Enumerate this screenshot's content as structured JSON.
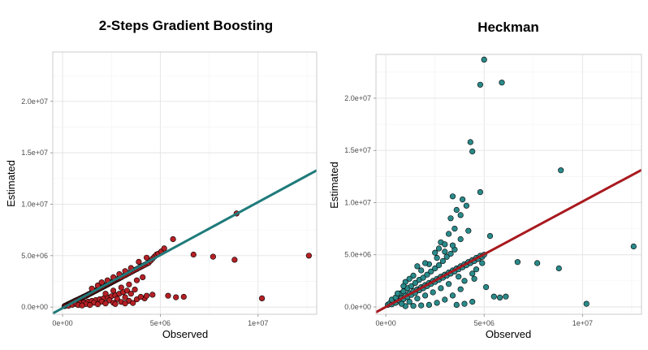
{
  "colors": {
    "gb_point": "#B52025",
    "gb_line": "#1F7A7A",
    "heck_point": "#2A8A8A",
    "heck_line": "#A8191F"
  },
  "chart_data": [
    {
      "type": "scatter",
      "title": "2-Steps Gradient Boosting",
      "xlabel": "Observed",
      "ylabel": "Estimated",
      "xlim": [
        -500000,
        13000000
      ],
      "ylim": [
        -700000,
        24800000
      ],
      "x_ticks": [
        0,
        5000000,
        10000000
      ],
      "x_tick_labels": [
        "0e+00",
        "5e+06",
        "1e+07"
      ],
      "y_ticks": [
        0,
        5000000,
        10000000,
        15000000,
        20000000
      ],
      "y_tick_labels": [
        "0.0e+00",
        "5.0e+06",
        "1.0e+07",
        "1.5e+07",
        "2.0e+07"
      ],
      "fit_line": {
        "intercept": -100000,
        "slope": 1.03
      },
      "point_color": "#B52025",
      "line_color": "#1F7A7A",
      "points": [
        [
          100000,
          90000
        ],
        [
          150000,
          140000
        ],
        [
          200000,
          180000
        ],
        [
          250000,
          240000
        ],
        [
          300000,
          280000
        ],
        [
          350000,
          320000
        ],
        [
          400000,
          380000
        ],
        [
          450000,
          420000
        ],
        [
          500000,
          470000
        ],
        [
          550000,
          510000
        ],
        [
          600000,
          560000
        ],
        [
          650000,
          600000
        ],
        [
          700000,
          650000
        ],
        [
          750000,
          690000
        ],
        [
          800000,
          740000
        ],
        [
          850000,
          780000
        ],
        [
          900000,
          830000
        ],
        [
          950000,
          870000
        ],
        [
          1000000,
          920000
        ],
        [
          1050000,
          970000
        ],
        [
          1100000,
          1010000
        ],
        [
          1150000,
          1060000
        ],
        [
          1200000,
          1100000
        ],
        [
          1250000,
          1150000
        ],
        [
          1300000,
          1200000
        ],
        [
          1350000,
          1250000
        ],
        [
          1400000,
          1300000
        ],
        [
          1450000,
          1350000
        ],
        [
          1500000,
          1400000
        ],
        [
          1550000,
          1450000
        ],
        [
          1600000,
          1500000
        ],
        [
          1650000,
          1550000
        ],
        [
          1700000,
          1600000
        ],
        [
          1750000,
          1650000
        ],
        [
          1800000,
          1700000
        ],
        [
          1850000,
          1750000
        ],
        [
          1900000,
          1800000
        ],
        [
          1950000,
          1850000
        ],
        [
          2000000,
          1900000
        ],
        [
          2050000,
          1950000
        ],
        [
          2100000,
          2000000
        ],
        [
          2150000,
          2050000
        ],
        [
          2200000,
          2100000
        ],
        [
          2250000,
          2150000
        ],
        [
          2300000,
          2200000
        ],
        [
          2350000,
          2250000
        ],
        [
          2400000,
          2300000
        ],
        [
          2450000,
          2350000
        ],
        [
          2500000,
          2400000
        ],
        [
          2550000,
          2450000
        ],
        [
          2600000,
          2500000
        ],
        [
          2650000,
          2550000
        ],
        [
          2700000,
          2600000
        ],
        [
          2750000,
          2650000
        ],
        [
          2800000,
          2700000
        ],
        [
          2850000,
          2750000
        ],
        [
          2900000,
          2800000
        ],
        [
          2950000,
          2850000
        ],
        [
          3000000,
          2900000
        ],
        [
          3100000,
          3000000
        ],
        [
          3200000,
          3100000
        ],
        [
          3300000,
          3200000
        ],
        [
          3400000,
          3300000
        ],
        [
          3500000,
          3400000
        ],
        [
          3600000,
          3500000
        ],
        [
          3700000,
          3600000
        ],
        [
          3800000,
          3700000
        ],
        [
          3900000,
          3800000
        ],
        [
          4000000,
          3900000
        ],
        [
          4100000,
          4000000
        ],
        [
          4200000,
          4100000
        ],
        [
          4300000,
          4200000
        ],
        [
          4400000,
          4300000
        ],
        [
          4500000,
          4500000
        ],
        [
          4600000,
          4700000
        ],
        [
          4700000,
          4900000
        ],
        [
          4800000,
          5100000
        ],
        [
          4900000,
          5200000
        ],
        [
          5050000,
          5400000
        ],
        [
          5200000,
          5700000
        ],
        [
          5650000,
          6600000
        ],
        [
          300000,
          120000
        ],
        [
          500000,
          220000
        ],
        [
          700000,
          300000
        ],
        [
          900000,
          380000
        ],
        [
          1100000,
          450000
        ],
        [
          1300000,
          520000
        ],
        [
          1500000,
          600000
        ],
        [
          1700000,
          680000
        ],
        [
          1900000,
          760000
        ],
        [
          2100000,
          850000
        ],
        [
          2300000,
          950000
        ],
        [
          2500000,
          1050000
        ],
        [
          2700000,
          1150000
        ],
        [
          2900000,
          1300000
        ],
        [
          3100000,
          1450000
        ],
        [
          3300000,
          1600000
        ],
        [
          800000,
          200000
        ],
        [
          1200000,
          300000
        ],
        [
          1600000,
          420000
        ],
        [
          2000000,
          520000
        ],
        [
          2400000,
          650000
        ],
        [
          2800000,
          800000
        ],
        [
          3200000,
          950000
        ],
        [
          1000000,
          150000
        ],
        [
          1400000,
          200000
        ],
        [
          1800000,
          280000
        ],
        [
          2200000,
          350000
        ],
        [
          2600000,
          420000
        ],
        [
          3000000,
          500000
        ],
        [
          3400000,
          600000
        ],
        [
          3800000,
          750000
        ],
        [
          4200000,
          850000
        ],
        [
          1500000,
          1800000
        ],
        [
          1800000,
          2100000
        ],
        [
          2000000,
          2400000
        ],
        [
          2300000,
          2600000
        ],
        [
          2600000,
          2900000
        ],
        [
          2900000,
          3200000
        ],
        [
          3200000,
          3500000
        ],
        [
          3500000,
          3800000
        ],
        [
          3900000,
          4400000
        ],
        [
          4300000,
          4800000
        ],
        [
          2200000,
          1300000
        ],
        [
          2600000,
          1600000
        ],
        [
          3000000,
          1900000
        ],
        [
          3400000,
          2200000
        ],
        [
          3800000,
          2600000
        ],
        [
          4100000,
          2900000
        ],
        [
          3500000,
          1300000
        ],
        [
          3700000,
          1700000
        ],
        [
          4000000,
          1000000
        ],
        [
          4300000,
          1100000
        ],
        [
          2700000,
          300000
        ],
        [
          3200000,
          350000
        ],
        [
          3600000,
          400000
        ],
        [
          4600000,
          1200000
        ],
        [
          5400000,
          1100000
        ],
        [
          5800000,
          950000
        ],
        [
          6200000,
          1000000
        ],
        [
          6700000,
          5100000
        ],
        [
          7700000,
          4900000
        ],
        [
          8800000,
          4600000
        ],
        [
          8900000,
          9100000
        ],
        [
          10200000,
          850000
        ],
        [
          12600000,
          5000000
        ]
      ]
    },
    {
      "type": "scatter",
      "title": "Heckman",
      "xlabel": "Observed",
      "ylabel": "Estimated",
      "xlim": [
        -500000,
        13000000
      ],
      "ylim": [
        -700000,
        24200000
      ],
      "x_ticks": [
        0,
        5000000,
        10000000
      ],
      "x_tick_labels": [
        "0e+00",
        "5e+06",
        "1e+07"
      ],
      "y_ticks": [
        0,
        5000000,
        10000000,
        15000000,
        20000000
      ],
      "y_tick_labels": [
        "0.0e+00",
        "5.0e+06",
        "1.0e+07",
        "1.5e+07",
        "2.0e+07"
      ],
      "fit_line": {
        "intercept": 0,
        "slope": 1.01
      },
      "point_color": "#2A8A8A",
      "line_color": "#A8191F",
      "points": [
        [
          100000,
          200000
        ],
        [
          200000,
          350000
        ],
        [
          300000,
          250000
        ],
        [
          400000,
          500000
        ],
        [
          500000,
          400000
        ],
        [
          600000,
          700000
        ],
        [
          700000,
          600000
        ],
        [
          800000,
          900000
        ],
        [
          900000,
          750000
        ],
        [
          1000000,
          1100000
        ],
        [
          1100000,
          950000
        ],
        [
          1200000,
          1300000
        ],
        [
          1300000,
          1150000
        ],
        [
          1400000,
          1500000
        ],
        [
          1500000,
          1350000
        ],
        [
          1600000,
          1700000
        ],
        [
          1700000,
          1600000
        ],
        [
          1800000,
          1900000
        ],
        [
          1900000,
          1800000
        ],
        [
          2000000,
          2100000
        ],
        [
          2100000,
          2000000
        ],
        [
          2200000,
          2300000
        ],
        [
          2300000,
          2200000
        ],
        [
          2400000,
          2500000
        ],
        [
          2500000,
          2400000
        ],
        [
          2600000,
          2700000
        ],
        [
          2700000,
          2600000
        ],
        [
          2800000,
          2900000
        ],
        [
          2900000,
          2800000
        ],
        [
          3000000,
          3100000
        ],
        [
          3100000,
          3000000
        ],
        [
          3200000,
          3300000
        ],
        [
          3300000,
          3200000
        ],
        [
          3400000,
          3500000
        ],
        [
          3500000,
          3400000
        ],
        [
          3600000,
          3700000
        ],
        [
          3700000,
          3600000
        ],
        [
          3800000,
          3900000
        ],
        [
          3900000,
          3800000
        ],
        [
          4000000,
          4100000
        ],
        [
          4100000,
          4000000
        ],
        [
          4200000,
          4300000
        ],
        [
          4300000,
          4200000
        ],
        [
          4400000,
          4500000
        ],
        [
          4500000,
          4400000
        ],
        [
          4600000,
          4700000
        ],
        [
          4700000,
          4600000
        ],
        [
          4800000,
          4900000
        ],
        [
          4900000,
          4800000
        ],
        [
          5000000,
          5000000
        ],
        [
          300000,
          700000
        ],
        [
          500000,
          900000
        ],
        [
          700000,
          1300000
        ],
        [
          900000,
          1500000
        ],
        [
          1100000,
          1800000
        ],
        [
          1300000,
          2000000
        ],
        [
          1500000,
          2300000
        ],
        [
          1700000,
          2600000
        ],
        [
          1900000,
          2800000
        ],
        [
          2100000,
          3100000
        ],
        [
          2300000,
          3400000
        ],
        [
          2500000,
          3700000
        ],
        [
          2700000,
          4000000
        ],
        [
          2900000,
          4400000
        ],
        [
          3100000,
          4800000
        ],
        [
          3300000,
          5100000
        ],
        [
          3500000,
          5500000
        ],
        [
          1000000,
          2400000
        ],
        [
          1400000,
          3000000
        ],
        [
          1800000,
          3500000
        ],
        [
          2200000,
          4100000
        ],
        [
          2600000,
          4700000
        ],
        [
          3000000,
          5300000
        ],
        [
          3400000,
          5900000
        ],
        [
          3800000,
          6500000
        ],
        [
          2800000,
          6200000
        ],
        [
          3200000,
          7000000
        ],
        [
          3500000,
          7500000
        ],
        [
          3300000,
          8500000
        ],
        [
          3600000,
          9300000
        ],
        [
          3400000,
          10600000
        ],
        [
          3900000,
          10300000
        ],
        [
          3800000,
          8800000
        ],
        [
          4100000,
          9700000
        ],
        [
          4200000,
          7300000
        ],
        [
          4800000,
          11000000
        ],
        [
          4400000,
          14900000
        ],
        [
          4300000,
          15800000
        ],
        [
          5000000,
          23700000
        ],
        [
          4800000,
          21300000
        ],
        [
          5900000,
          21500000
        ],
        [
          8900000,
          13100000
        ],
        [
          5300000,
          6800000
        ],
        [
          6700000,
          4300000
        ],
        [
          7700000,
          4200000
        ],
        [
          8800000,
          3700000
        ],
        [
          12600000,
          5800000
        ],
        [
          10200000,
          300000
        ],
        [
          5100000,
          1900000
        ],
        [
          5500000,
          1000000
        ],
        [
          5800000,
          900000
        ],
        [
          6100000,
          1000000
        ],
        [
          4400000,
          3200000
        ],
        [
          4000000,
          2500000
        ],
        [
          3800000,
          1700000
        ],
        [
          3400000,
          1100000
        ],
        [
          3000000,
          700000
        ],
        [
          2600000,
          400000
        ],
        [
          2200000,
          200000
        ],
        [
          1800000,
          150000
        ],
        [
          1400000,
          100000
        ],
        [
          1000000,
          80000
        ],
        [
          3600000,
          200000
        ],
        [
          4000000,
          300000
        ],
        [
          4400000,
          500000
        ],
        [
          3200000,
          2200000
        ],
        [
          2800000,
          1800000
        ],
        [
          2400000,
          1400000
        ],
        [
          2000000,
          1100000
        ],
        [
          1600000,
          800000
        ],
        [
          1200000,
          500000
        ],
        [
          800000,
          300000
        ],
        [
          4600000,
          3600000
        ],
        [
          4900000,
          4200000
        ],
        [
          4500000,
          2700000
        ],
        [
          3700000,
          2900000
        ],
        [
          2500000,
          5200000
        ],
        [
          2000000,
          4200000
        ],
        [
          1600000,
          3900000
        ],
        [
          1200000,
          2700000
        ],
        [
          900000,
          2000000
        ],
        [
          600000,
          1300000
        ],
        [
          3000000,
          6000000
        ],
        [
          2700000,
          5600000
        ]
      ]
    }
  ]
}
